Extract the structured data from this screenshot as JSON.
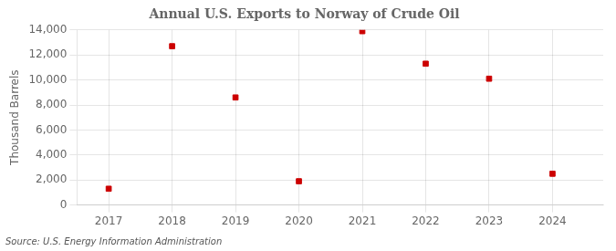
{
  "chart_data": {
    "type": "scatter",
    "title": "Annual U.S. Exports to Norway of Crude Oil",
    "ylabel": "Thousand Barrels",
    "annotation": "Source: U.S. Energy Information Administration",
    "x": [
      2017,
      2018,
      2019,
      2020,
      2021,
      2022,
      2023,
      2024
    ],
    "values": [
      1300,
      12700,
      8600,
      1900,
      13900,
      11300,
      10100,
      2500
    ],
    "color": "#cc0000",
    "marker": "square",
    "xlim": [
      2016.5,
      2024.8
    ],
    "xticks": [
      2017,
      2018,
      2019,
      2020,
      2021,
      2022,
      2023,
      2024
    ],
    "ylim": [
      0,
      14000
    ],
    "yticks": [
      0,
      {
        "value": 2000,
        "label": "2,000"
      },
      {
        "value": 4000,
        "label": "4,000"
      },
      {
        "value": 6000,
        "label": "6,000"
      },
      {
        "value": 8000,
        "label": "8,000"
      },
      {
        "value": 10000,
        "label": "10,000"
      },
      {
        "value": 12000,
        "label": "12,000"
      },
      {
        "value": 14000,
        "label": "14,000"
      }
    ],
    "grid": true
  }
}
